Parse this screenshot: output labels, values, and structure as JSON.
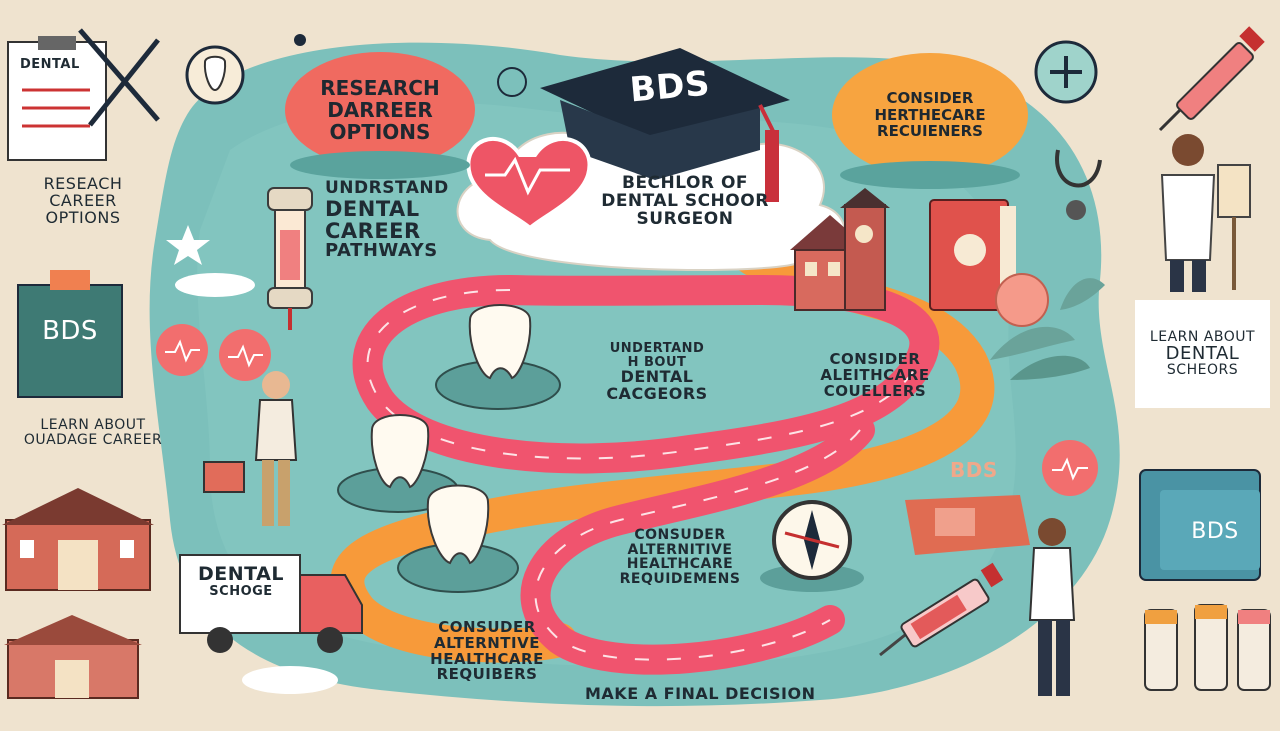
{
  "center_cap": {
    "text": "BDS"
  },
  "cloud": {
    "line1": "BECHLOR OF",
    "line2": "DENTAL SCHOOR",
    "line3": "SURGEON"
  },
  "ovals": {
    "research": {
      "line1": "RESEARCH",
      "line2": "DARREER",
      "line3": "OPTIONS"
    },
    "consider": {
      "line1": "CONSIDER",
      "line2": "HERTHECARE",
      "line3": "RECUIENERS"
    }
  },
  "path_labels": {
    "understand_pathways": {
      "line1": "UNDRSTAND",
      "line2": "DENTAL",
      "line3": "CAREER",
      "line4": "PATHWAYS"
    },
    "understand_about": {
      "line1": "UNDERTAND",
      "line2": "H BOUT",
      "line3": "DENTAL",
      "line4": "CACGEORS"
    },
    "consider_couellers": {
      "line1": "CONSIDER",
      "line2": "ALEITHCARE",
      "line3": "COUELLERS"
    },
    "consuder_alternitive": {
      "line1": "CONSUDER",
      "line2": "ALTERNITIVE",
      "line3": "HEALTHCARE",
      "line4": "REQUIDEMENS"
    },
    "consuder_bottom": {
      "line1": "CONSUDER",
      "line2": "ALTERNTIVE",
      "line3": "HEALTHCARE",
      "line4": "REQUIBERS"
    },
    "final": {
      "text": "MAKE A FINAL DECISION"
    }
  },
  "left_labels": {
    "clipboard": "DENTAL",
    "research": {
      "line1": "RESEACH",
      "line2": "CAREER",
      "line3": "OPTIONS"
    },
    "bds_card": "BDS",
    "learn": {
      "line1": "LEARN ABOUT",
      "line2": "OUADAGE CAREER"
    },
    "truck": {
      "line1": "DENTAL",
      "line2": "SCHOGE"
    }
  },
  "right_labels": {
    "learn_card": {
      "line1": "LEARN ABOUT",
      "line2": "DENTAL",
      "line3": "SCHEORS"
    },
    "book": "BDS",
    "plaque": "BDS"
  },
  "colors": {
    "background": "#efe3cf",
    "teal": "#7cc0bb",
    "path_pink": "#f0546e",
    "path_orange": "#f79a3a",
    "oval_coral": "#f06a60",
    "oval_orange": "#f7a440",
    "navy": "#1d2a3a"
  }
}
